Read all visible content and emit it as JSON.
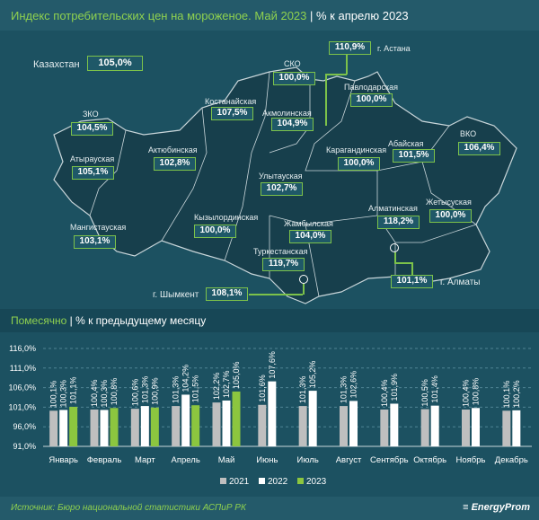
{
  "header": {
    "title": "Индекс потребительских цен на мороженое. Май 2023",
    "subtitle": "% к апрелю 2023"
  },
  "map": {
    "kazakhstan": {
      "label": "Казахстан",
      "value": "105,0%"
    },
    "regions": [
      {
        "name": "г. Астана",
        "value": "110,9%"
      },
      {
        "name": "СКО",
        "value": "100,0%"
      },
      {
        "name": "Павлодарская",
        "value": "100,0%"
      },
      {
        "name": "Костанайская",
        "value": "107,5%"
      },
      {
        "name": "Акмолинская",
        "value": "104,9%"
      },
      {
        "name": "ЗКО",
        "value": "104,5%"
      },
      {
        "name": "Абайская",
        "value": "101,5%"
      },
      {
        "name": "ВКО",
        "value": "106,4%"
      },
      {
        "name": "Атырауская",
        "value": "105,1%"
      },
      {
        "name": "Актюбинская",
        "value": "102,8%"
      },
      {
        "name": "Карагандинская",
        "value": "100,0%"
      },
      {
        "name": "Улытауская",
        "value": "102,7%"
      },
      {
        "name": "Мангистауская",
        "value": "103,1%"
      },
      {
        "name": "Кызылординская",
        "value": "100,0%"
      },
      {
        "name": "Алматинская",
        "value": "118,2%"
      },
      {
        "name": "Жетысуская",
        "value": "100,0%"
      },
      {
        "name": "Жамбылская",
        "value": "104,0%"
      },
      {
        "name": "Туркестанская",
        "value": "119,7%"
      },
      {
        "name": "г. Шымкент",
        "value": "108,1%"
      },
      {
        "name": "г. Алматы",
        "value": "101,1%"
      }
    ]
  },
  "section": {
    "title": "Помесячно",
    "subtitle": "% к предыдущему месяцу"
  },
  "chart_data": {
    "type": "bar",
    "categories": [
      "Январь",
      "Февраль",
      "Март",
      "Апрель",
      "Май",
      "Июнь",
      "Июль",
      "Август",
      "Сентябрь",
      "Октябрь",
      "Ноябрь",
      "Декабрь"
    ],
    "series": [
      {
        "name": "2021",
        "color": "#bfbfbf",
        "values": [
          100.1,
          100.4,
          100.6,
          101.3,
          102.2,
          101.6,
          101.3,
          101.3,
          100.4,
          100.5,
          100.4,
          100.1
        ],
        "labels": [
          "100,1%",
          "100,4%",
          "100,6%",
          "101,3%",
          "102,2%",
          "101,6%",
          "101,3%",
          "101,3%",
          "100,4%",
          "100,5%",
          "100,4%",
          "100,1%"
        ]
      },
      {
        "name": "2022",
        "color": "#ffffff",
        "values": [
          100.3,
          100.3,
          101.3,
          104.2,
          102.7,
          107.6,
          105.2,
          102.6,
          101.9,
          101.4,
          100.8,
          100.2
        ],
        "labels": [
          "100,3%",
          "100,3%",
          "101,3%",
          "104,2%",
          "102,7%",
          "107,6%",
          "105,2%",
          "102,6%",
          "101,9%",
          "101,4%",
          "100,8%",
          "100,2%"
        ]
      },
      {
        "name": "2023",
        "color": "#8cc63f",
        "values": [
          101.1,
          100.8,
          100.9,
          101.5,
          105.0,
          null,
          null,
          null,
          null,
          null,
          null,
          null
        ],
        "labels": [
          "101,1%",
          "100,8%",
          "100,9%",
          "101,5%",
          "105,0%",
          null,
          null,
          null,
          null,
          null,
          null,
          null
        ]
      }
    ],
    "yticks": [
      "91,0%",
      "96,0%",
      "101,0%",
      "106,0%",
      "111,0%",
      "116,0%"
    ],
    "ylim": [
      91,
      116
    ],
    "grid": true,
    "legend": "bottom"
  },
  "footer": {
    "source": "Источник: Бюро национальной статистики АСПиР РК",
    "logo": "EnergyProm"
  }
}
